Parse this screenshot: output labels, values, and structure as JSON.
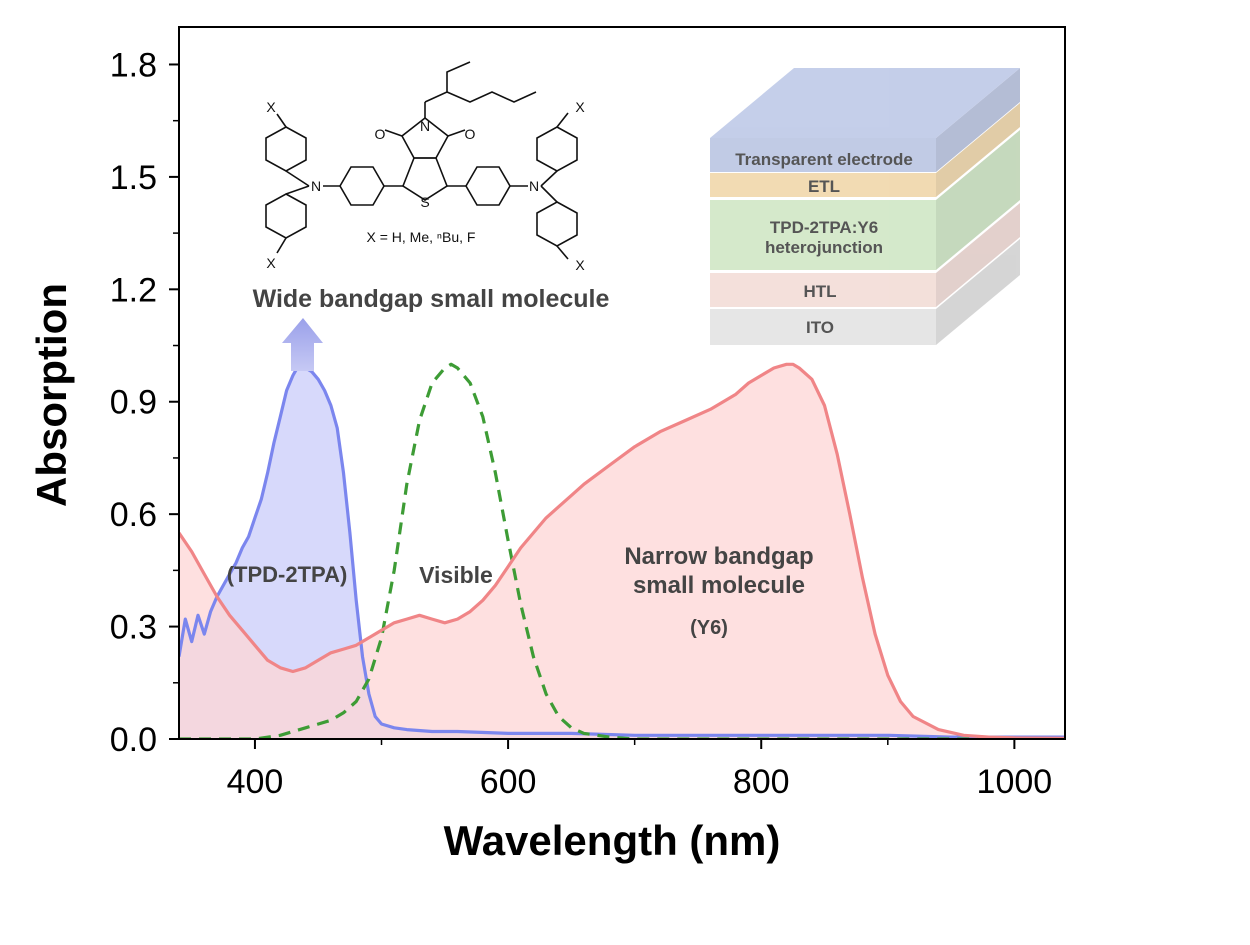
{
  "chart_data": {
    "type": "area",
    "title": "",
    "xlabel": "Wavelength (nm)",
    "ylabel": "Absorption",
    "xlim": [
      340,
      1040
    ],
    "ylim": [
      0,
      1.9
    ],
    "xticks": [
      400,
      600,
      800,
      1000
    ],
    "xtick_labels": [
      "400",
      "600",
      "800",
      "1000"
    ],
    "yticks": [
      0,
      0.3,
      0.6,
      0.9,
      1.2,
      1.5,
      1.8
    ],
    "ytick_labels": [
      "0.0",
      "0.3",
      "0.6",
      "0.9",
      "1.2",
      "1.5",
      "1.8"
    ],
    "grid": false,
    "legend": "none",
    "series": [
      {
        "key": "tpd",
        "color": "#7b86ee",
        "fill": "#c9ccfa",
        "style": "solid",
        "x": [
          340,
          345,
          350,
          355,
          360,
          365,
          370,
          375,
          380,
          385,
          390,
          395,
          400,
          405,
          410,
          415,
          420,
          425,
          430,
          435,
          440,
          445,
          450,
          455,
          460,
          465,
          470,
          475,
          480,
          485,
          490,
          495,
          500,
          510,
          520,
          540,
          560,
          600,
          650,
          700,
          750,
          800,
          850,
          900,
          950,
          1000,
          1040
        ],
        "y": [
          0.22,
          0.32,
          0.26,
          0.33,
          0.28,
          0.34,
          0.38,
          0.41,
          0.44,
          0.47,
          0.51,
          0.54,
          0.59,
          0.64,
          0.71,
          0.79,
          0.86,
          0.93,
          0.97,
          1.0,
          0.99,
          0.98,
          0.96,
          0.93,
          0.89,
          0.83,
          0.71,
          0.55,
          0.37,
          0.22,
          0.12,
          0.06,
          0.04,
          0.03,
          0.025,
          0.02,
          0.02,
          0.015,
          0.015,
          0.01,
          0.01,
          0.01,
          0.01,
          0.01,
          0.005,
          0.005,
          0.005
        ]
      },
      {
        "key": "visible",
        "color": "#3d9c35",
        "fill": "none",
        "style": "dashed",
        "x": [
          340,
          360,
          380,
          400,
          420,
          440,
          460,
          470,
          480,
          490,
          500,
          510,
          520,
          530,
          540,
          550,
          555,
          560,
          570,
          580,
          590,
          600,
          610,
          620,
          630,
          640,
          650,
          660,
          680,
          700,
          750,
          800,
          900,
          1040
        ],
        "y": [
          0,
          0,
          0,
          0,
          0.01,
          0.03,
          0.05,
          0.07,
          0.1,
          0.16,
          0.27,
          0.45,
          0.68,
          0.85,
          0.95,
          0.99,
          1.0,
          0.99,
          0.95,
          0.86,
          0.71,
          0.53,
          0.36,
          0.22,
          0.12,
          0.06,
          0.03,
          0.015,
          0.005,
          0,
          0,
          0,
          0,
          0
        ]
      },
      {
        "key": "y6",
        "color": "#f08587",
        "fill": "#fdd5d6",
        "style": "solid",
        "x": [
          340,
          350,
          360,
          370,
          380,
          390,
          400,
          410,
          420,
          430,
          440,
          450,
          460,
          470,
          480,
          490,
          500,
          510,
          520,
          530,
          540,
          550,
          560,
          570,
          580,
          590,
          600,
          610,
          620,
          630,
          640,
          650,
          660,
          680,
          700,
          720,
          740,
          760,
          780,
          790,
          800,
          810,
          820,
          825,
          830,
          840,
          850,
          860,
          870,
          880,
          890,
          900,
          910,
          920,
          940,
          960,
          980,
          1000,
          1040
        ],
        "y": [
          0.55,
          0.5,
          0.44,
          0.38,
          0.33,
          0.29,
          0.25,
          0.21,
          0.19,
          0.18,
          0.19,
          0.21,
          0.23,
          0.24,
          0.25,
          0.27,
          0.29,
          0.31,
          0.32,
          0.33,
          0.32,
          0.31,
          0.32,
          0.34,
          0.37,
          0.41,
          0.46,
          0.51,
          0.55,
          0.59,
          0.62,
          0.65,
          0.68,
          0.73,
          0.78,
          0.82,
          0.85,
          0.88,
          0.92,
          0.95,
          0.97,
          0.99,
          1.0,
          1.0,
          0.99,
          0.96,
          0.89,
          0.76,
          0.6,
          0.43,
          0.28,
          0.17,
          0.1,
          0.06,
          0.025,
          0.01,
          0.005,
          0.003,
          0.002
        ]
      }
    ],
    "annotations": {
      "tpd_label": "(TPD-2TPA)",
      "visible_label": "Visible",
      "y6_label_line1": "Narrow bandgap",
      "y6_label_line2": "small molecule",
      "y6_label_line3": "(Y6)",
      "wide_label": "Wide bandgap small molecule"
    },
    "molecule": {
      "substituent_text": "X = H, Me, ⁿBu, F",
      "atoms": {
        "x": "X",
        "n": "N",
        "o": "O",
        "s": "S"
      }
    },
    "device_layers": [
      {
        "key": "electrode",
        "label": "Transparent electrode",
        "color": "#b9c4e2"
      },
      {
        "key": "etl",
        "label": "ETL",
        "color": "#f0d6a8"
      },
      {
        "key": "active",
        "label": "TPD-2TPA:Y6",
        "label2": "heterojunction",
        "color": "#cfe6c4"
      },
      {
        "key": "htl",
        "label": "HTL",
        "color": "#f2dcd6"
      },
      {
        "key": "ito",
        "label": "ITO",
        "color": "#e2e2e2"
      }
    ]
  }
}
